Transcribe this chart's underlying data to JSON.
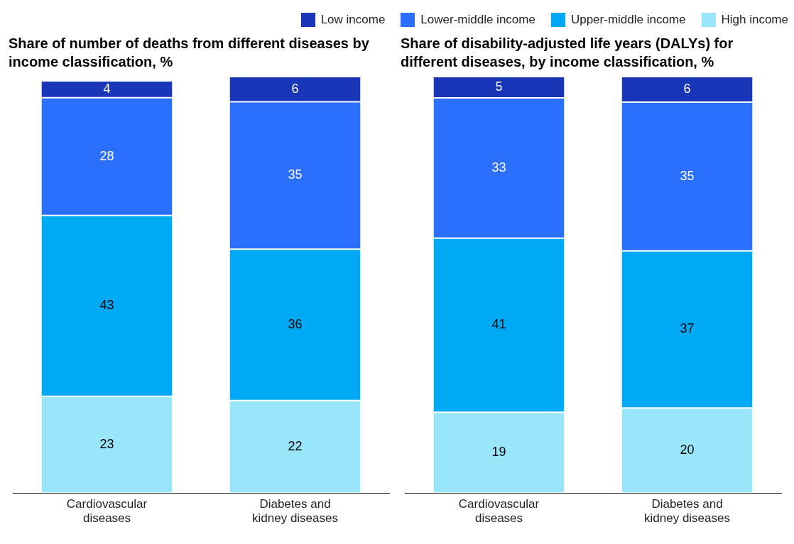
{
  "chart_data": [
    {
      "type": "bar",
      "title": "Share of number of deaths from different diseases by income classification, %",
      "categories": [
        "Cardiovascular diseases",
        "Diabetes and kidney diseases"
      ],
      "stacked": true,
      "data_labels": true,
      "tick_labels": "x",
      "legend": "top right",
      "grid": false,
      "series": [
        {
          "name": "High income",
          "color": "#99e6fb",
          "values": [
            23,
            22
          ]
        },
        {
          "name": "Upper-middle income",
          "color": "#00a9f4",
          "values": [
            43,
            36
          ]
        },
        {
          "name": "Lower-middle income",
          "color": "#2b6fff",
          "values": [
            28,
            35
          ]
        },
        {
          "name": "Low income",
          "color": "#1a36b8",
          "values": [
            4,
            6
          ]
        }
      ]
    },
    {
      "type": "bar",
      "title": "Share of disability-adjusted life years (DALYs) for different diseases, by income classification, %",
      "categories": [
        "Cardiovascular diseases",
        "Diabetes and kidney diseases"
      ],
      "stacked": true,
      "data_labels": true,
      "tick_labels": "x",
      "grid": false,
      "series": [
        {
          "color": "#99e6fb",
          "values": [
            19,
            20
          ]
        },
        {
          "color": "#00a9f4",
          "values": [
            41,
            37
          ]
        },
        {
          "color": "#2b6fff",
          "values": [
            33,
            35
          ]
        },
        {
          "color": "#1a36b8",
          "values": [
            5,
            6
          ]
        }
      ]
    }
  ]
}
